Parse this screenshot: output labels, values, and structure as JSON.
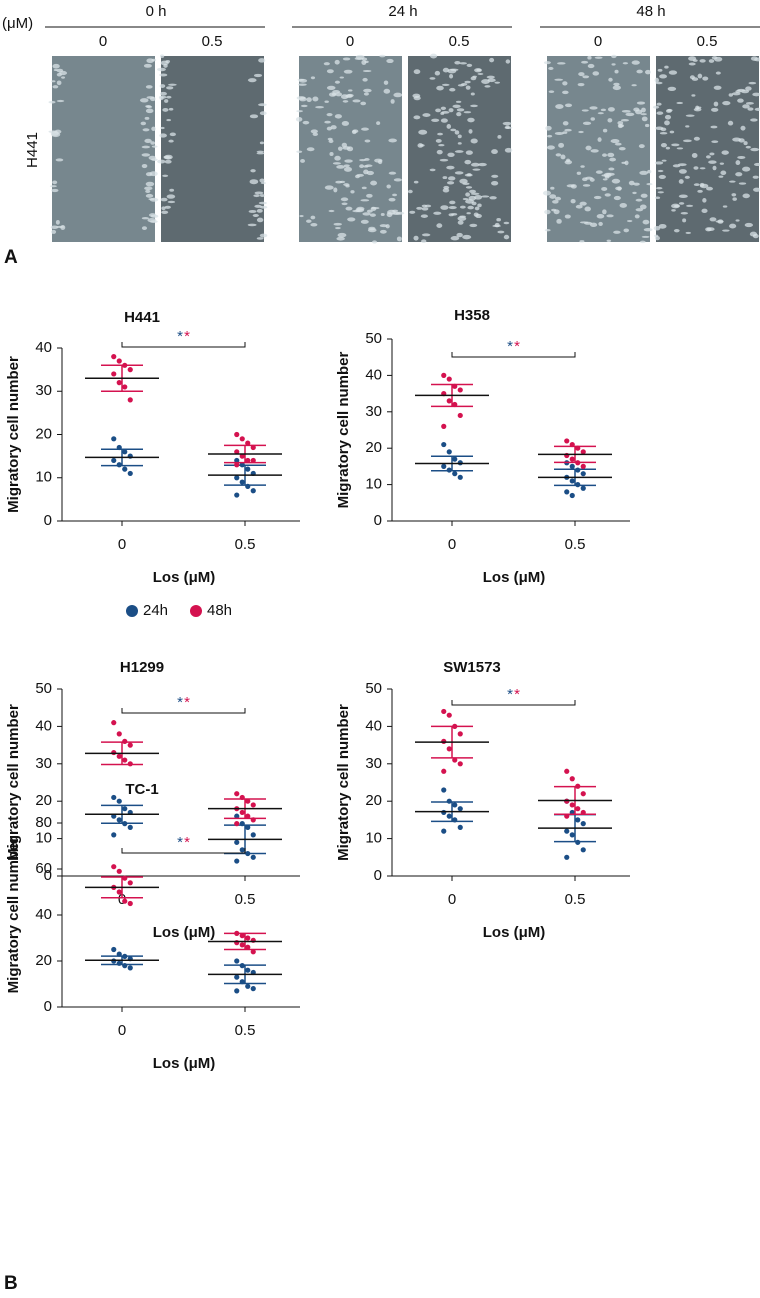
{
  "panel_a": {
    "unit": "(μM)",
    "label": "A",
    "row_label": "H441",
    "groups": [
      {
        "label": "0 h",
        "doses": [
          "0",
          "0.5"
        ]
      },
      {
        "label": "24 h",
        "doses": [
          "0",
          "0.5"
        ]
      },
      {
        "label": "48 h",
        "doses": [
          "0",
          "0.5"
        ]
      }
    ]
  },
  "panel_b_label": "B",
  "legend": [
    {
      "name": "24h",
      "color": "#1b4e86"
    },
    {
      "name": "48h",
      "color": "#d4124f"
    }
  ],
  "chart_data": [
    {
      "type": "scatter",
      "title": "H441",
      "y_label": "Migratory cell number",
      "x_label": "Los (μM)",
      "categories": [
        "0",
        "0.5"
      ],
      "ylim": [
        0,
        40
      ],
      "yticks": [
        0,
        10,
        20,
        30,
        40
      ],
      "significance": [
        "*",
        "*"
      ],
      "series": [
        {
          "values": [
            [
              19,
              17,
              16,
              15,
              14,
              13,
              12,
              11
            ],
            [
              14,
              13,
              12,
              11,
              10,
              9,
              8,
              7,
              6
            ]
          ],
          "mean": [
            14.7,
            10.6
          ],
          "sd": [
            1.9,
            2.3
          ]
        },
        {
          "values": [
            [
              38,
              37,
              36,
              35,
              34,
              32,
              31,
              28
            ],
            [
              20,
              19,
              18,
              17,
              16,
              15,
              14,
              14,
              13
            ]
          ],
          "mean": [
            33,
            15.5
          ],
          "sd": [
            3,
            2
          ]
        }
      ]
    },
    {
      "type": "scatter",
      "title": "H358",
      "y_label": "Migratory cell number",
      "x_label": "Los (μM)",
      "categories": [
        "0",
        "0.5"
      ],
      "ylim": [
        0,
        50
      ],
      "yticks": [
        0,
        10,
        20,
        30,
        40,
        50
      ],
      "significance": [
        "*",
        "*"
      ],
      "series": [
        {
          "values": [
            [
              21,
              19,
              17,
              16,
              15,
              14,
              13,
              12
            ],
            [
              16,
              15,
              14,
              13,
              12,
              11,
              10,
              9,
              8,
              7
            ]
          ],
          "mean": [
            15.8,
            12
          ],
          "sd": [
            2,
            2.2
          ]
        },
        {
          "values": [
            [
              40,
              39,
              37,
              36,
              35,
              33,
              32,
              29,
              26
            ],
            [
              22,
              21,
              20,
              19,
              18,
              17,
              16,
              15
            ]
          ],
          "mean": [
            34.5,
            18.3
          ],
          "sd": [
            3,
            2.2
          ]
        }
      ]
    },
    {
      "type": "scatter",
      "title": "H1299",
      "y_label": "Migratory cell number",
      "x_label": "Los (μM)",
      "categories": [
        "0",
        "0.5"
      ],
      "ylim": [
        0,
        50
      ],
      "yticks": [
        0,
        10,
        20,
        30,
        40,
        50
      ],
      "significance": [
        "*",
        "*"
      ],
      "series": [
        {
          "values": [
            [
              21,
              20,
              18,
              17,
              16,
              15,
              14,
              13,
              11
            ],
            [
              16,
              14,
              13,
              11,
              9,
              7,
              6,
              5,
              4
            ]
          ],
          "mean": [
            16.5,
            9.8
          ],
          "sd": [
            2.4,
            3.8
          ]
        },
        {
          "values": [
            [
              41,
              38,
              36,
              35,
              33,
              32,
              31,
              30
            ],
            [
              22,
              21,
              20,
              19,
              18,
              17,
              16,
              15,
              14
            ]
          ],
          "mean": [
            32.8,
            18
          ],
          "sd": [
            3,
            2.6
          ]
        }
      ]
    },
    {
      "type": "scatter",
      "title": "SW1573",
      "y_label": "Migratory cell number",
      "x_label": "Los (μM)",
      "categories": [
        "0",
        "0.5"
      ],
      "ylim": [
        0,
        50
      ],
      "yticks": [
        0,
        10,
        20,
        30,
        40,
        50
      ],
      "significance": [
        "*",
        "*"
      ],
      "series": [
        {
          "values": [
            [
              23,
              20,
              19,
              18,
              17,
              16,
              15,
              13,
              12
            ],
            [
              20,
              17,
              15,
              14,
              12,
              11,
              9,
              7,
              5
            ]
          ],
          "mean": [
            17.2,
            12.8
          ],
          "sd": [
            2.6,
            3.6
          ]
        },
        {
          "values": [
            [
              44,
              43,
              40,
              38,
              36,
              34,
              31,
              30,
              28
            ],
            [
              28,
              26,
              24,
              22,
              20,
              19,
              18,
              17,
              16
            ]
          ],
          "mean": [
            35.8,
            20.2
          ],
          "sd": [
            4.2,
            3.7
          ]
        }
      ]
    },
    {
      "type": "scatter",
      "title": "TC-1",
      "y_label": "Migratory cell number",
      "x_label": "Los (μM)",
      "categories": [
        "0",
        "0.5"
      ],
      "ylim": [
        0,
        80
      ],
      "yticks": [
        0,
        20,
        40,
        60,
        80
      ],
      "significance": [
        "*",
        "*"
      ],
      "series": [
        {
          "values": [
            [
              25,
              23,
              22,
              21,
              20,
              19,
              18,
              17
            ],
            [
              20,
              18,
              16,
              15,
              13,
              11,
              9,
              8,
              7
            ]
          ],
          "mean": [
            20.3,
            14.2
          ],
          "sd": [
            1.8,
            4
          ]
        },
        {
          "values": [
            [
              61,
              59,
              56,
              54,
              52,
              50,
              46,
              45
            ],
            [
              32,
              31,
              30,
              29,
              28,
              27,
              26,
              24
            ]
          ],
          "mean": [
            52,
            28.5
          ],
          "sd": [
            4.5,
            3.5
          ]
        }
      ]
    }
  ]
}
